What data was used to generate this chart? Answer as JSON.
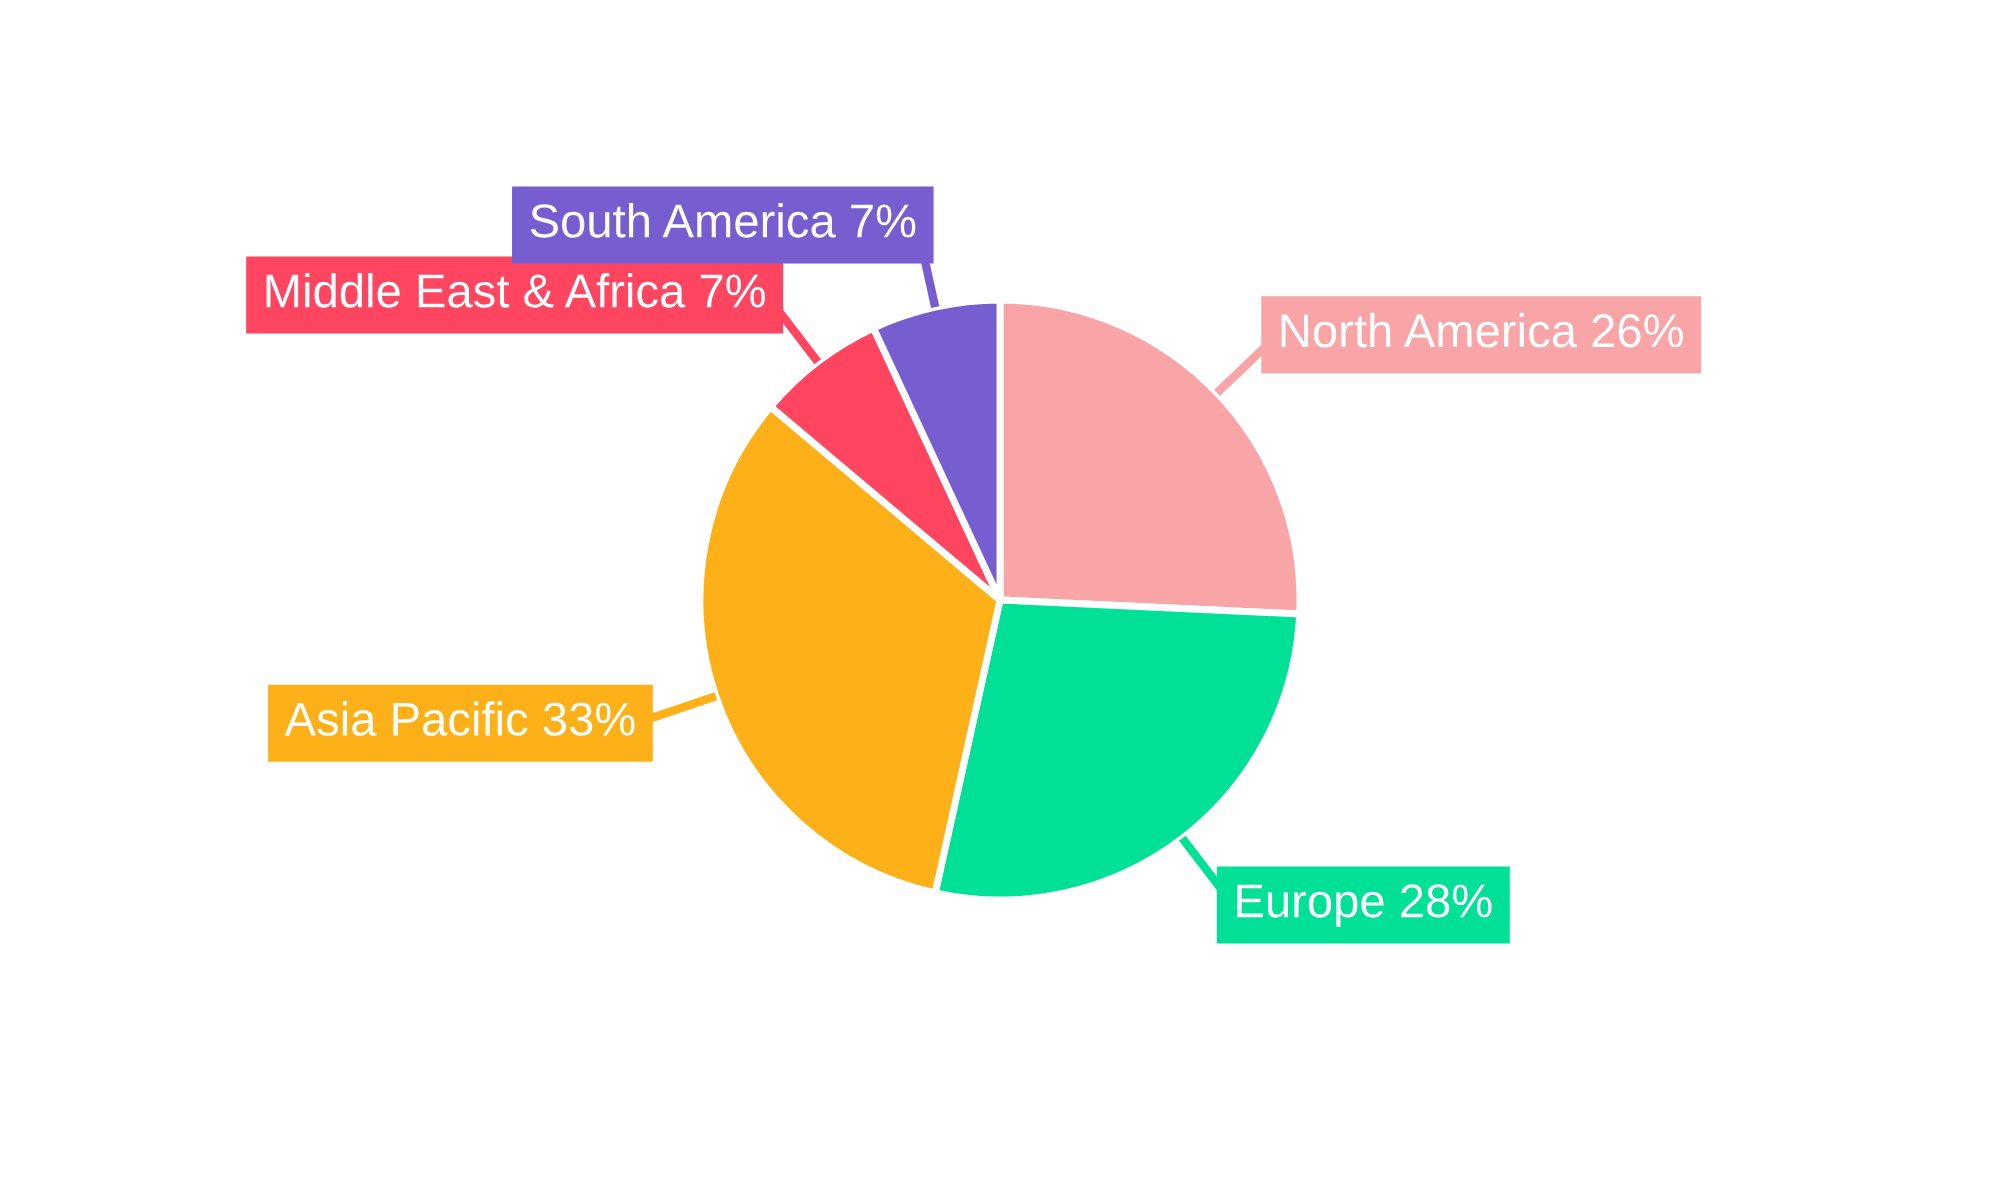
{
  "chart_data": {
    "type": "pie",
    "categories": [
      "North America",
      "Europe",
      "Asia Pacific",
      "Middle East & Africa",
      "South America"
    ],
    "values": [
      26,
      28,
      33,
      7,
      7
    ],
    "value_labels": [
      "26%",
      "28%",
      "33%",
      "7%",
      "7%"
    ],
    "colors": [
      "#f9a5a8",
      "#00e096",
      "#feb019",
      "#ff4560",
      "#775dd0"
    ]
  }
}
